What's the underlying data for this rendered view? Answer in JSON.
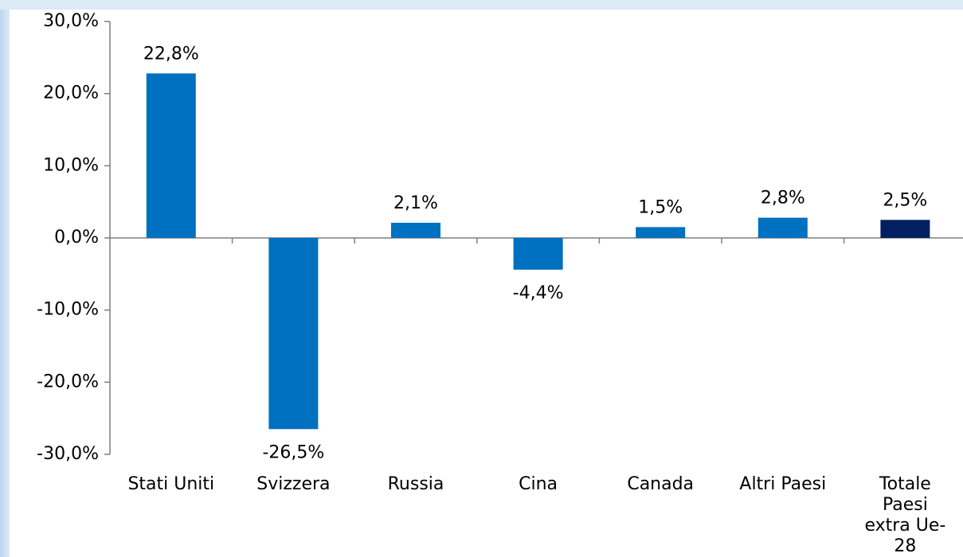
{
  "chart_data": {
    "type": "bar",
    "categories": [
      "Stati Uniti",
      "Svizzera",
      "Russia",
      "Cina",
      "Canada",
      "Altri Paesi",
      "Totale Paesi extra Ue-28"
    ],
    "values": [
      22.8,
      -26.5,
      2.1,
      -4.4,
      1.5,
      2.8,
      2.5
    ],
    "value_labels": [
      "22,8%",
      "-26,5%",
      "2,1%",
      "-4,4%",
      "1,5%",
      "2,8%",
      "2,5%"
    ],
    "colors": [
      "#0070c0",
      "#0070c0",
      "#0070c0",
      "#0070c0",
      "#0070c0",
      "#0070c0",
      "#002060"
    ],
    "ylim": [
      -30,
      30
    ],
    "yticks": [
      {
        "value": -30,
        "label": "-30,0%"
      },
      {
        "value": -20,
        "label": "-20,0%"
      },
      {
        "value": -10,
        "label": "-10,0%"
      },
      {
        "value": 0,
        "label": "0,0%"
      },
      {
        "value": 10,
        "label": "10,0%"
      },
      {
        "value": 20,
        "label": "20,0%"
      },
      {
        "value": 30,
        "label": "30,0%"
      }
    ],
    "grid": false
  }
}
